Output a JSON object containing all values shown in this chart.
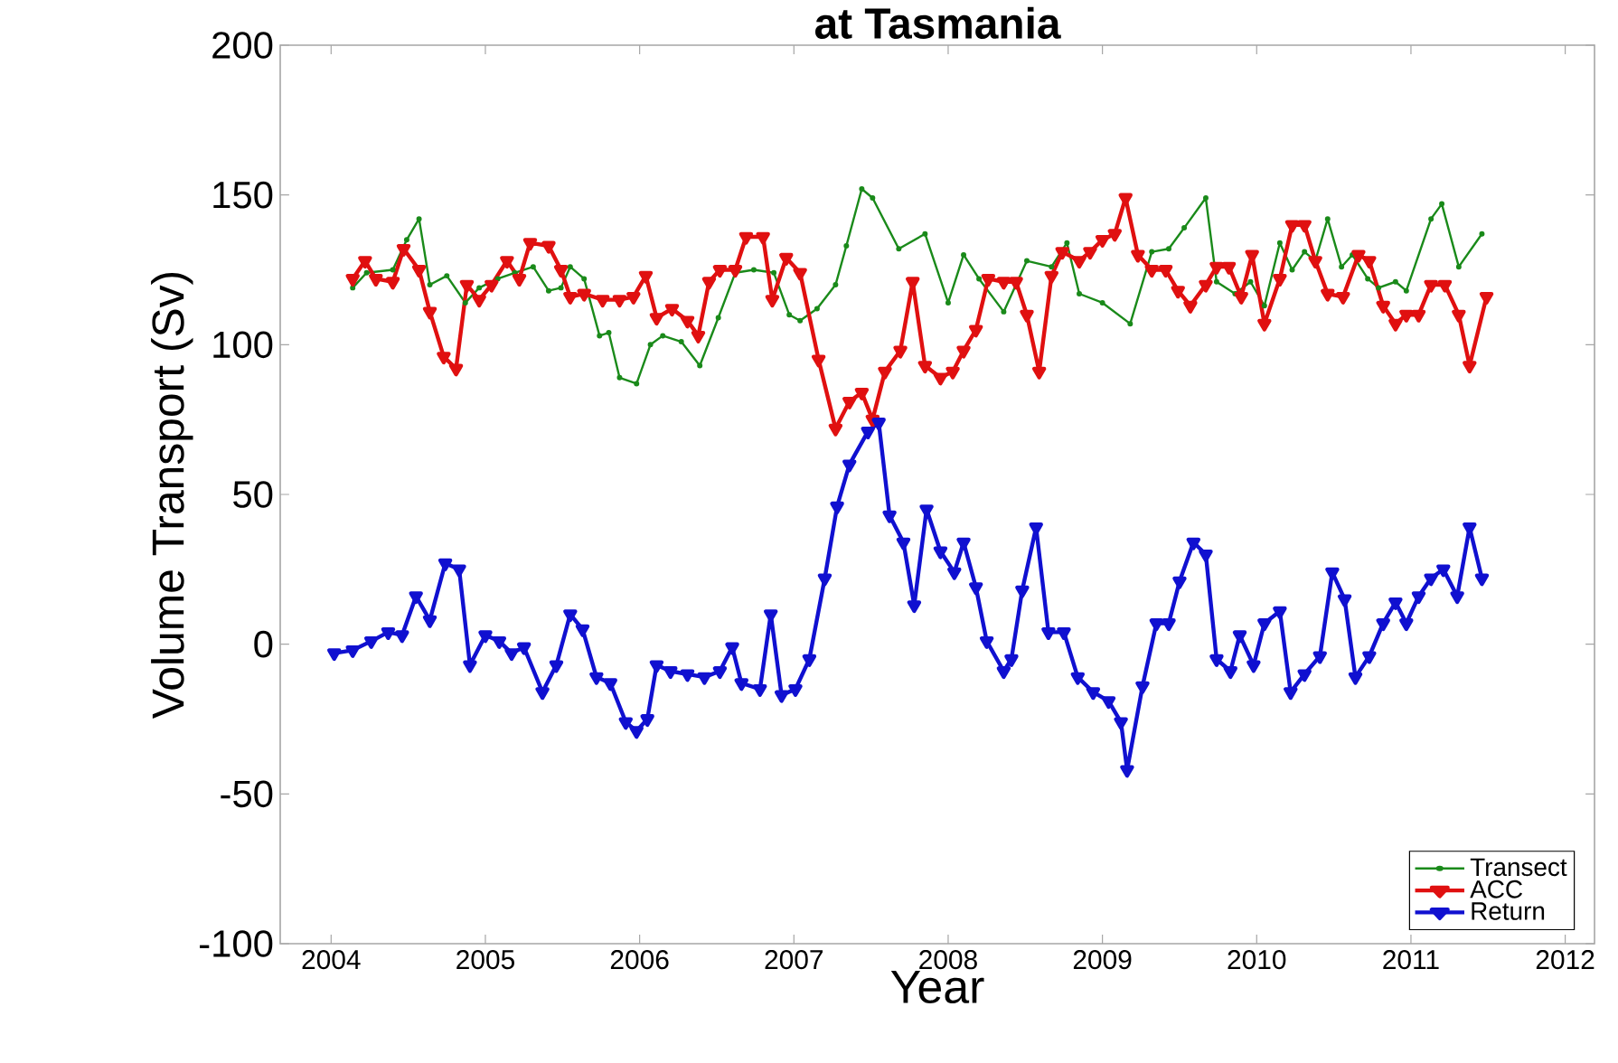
{
  "chart_data": {
    "type": "line",
    "title": "at Tasmania",
    "xlabel": "Year",
    "ylabel": "Volume Transport (Sv)",
    "xlim": [
      2003.67,
      2012.19
    ],
    "ylim": [
      -100,
      200
    ],
    "xticks": [
      2004,
      2005,
      2006,
      2007,
      2008,
      2009,
      2010,
      2011,
      2012
    ],
    "yticks": [
      -100,
      -50,
      0,
      50,
      100,
      150,
      200
    ],
    "grid": false,
    "legend": "bottom right",
    "series": [
      {
        "name": "Transect",
        "color": "#1a8a1a",
        "marker": "circle",
        "x": [
          2004.14,
          2004.23,
          2004.4,
          2004.49,
          2004.57,
          2004.64,
          2004.75,
          2004.87,
          2004.96,
          2005.08,
          2005.19,
          2005.31,
          2005.41,
          2005.49,
          2005.55,
          2005.64,
          2005.74,
          2005.8,
          2005.87,
          2005.98,
          2006.07,
          2006.15,
          2006.27,
          2006.39,
          2006.51,
          2006.62,
          2006.74,
          2006.87,
          2006.97,
          2007.04,
          2007.15,
          2007.27,
          2007.34,
          2007.44,
          2007.51,
          2007.68,
          2007.85,
          2008.0,
          2008.1,
          2008.2,
          2008.36,
          2008.51,
          2008.67,
          2008.77,
          2008.85,
          2009.0,
          2009.18,
          2009.32,
          2009.43,
          2009.53,
          2009.67,
          2009.74,
          2009.86,
          2009.96,
          2010.05,
          2010.15,
          2010.23,
          2010.31,
          2010.38,
          2010.46,
          2010.55,
          2010.62,
          2010.72,
          2010.79,
          2010.9,
          2010.97,
          2011.13,
          2011.2,
          2011.31,
          2011.46
        ],
        "values": [
          119,
          124,
          125,
          135,
          142,
          120,
          123,
          114,
          119,
          122,
          124,
          126,
          118,
          119,
          126,
          122,
          103,
          104,
          89,
          87,
          100,
          103,
          101,
          93,
          109,
          124,
          125,
          124,
          110,
          108,
          112,
          120,
          133,
          152,
          149,
          132,
          137,
          114,
          130,
          122,
          111,
          128,
          126,
          134,
          117,
          114,
          107,
          131,
          132,
          139,
          149,
          121,
          117,
          121,
          113,
          134,
          125,
          131,
          128,
          142,
          126,
          130,
          122,
          119,
          121,
          118,
          142,
          147,
          126,
          137
        ]
      },
      {
        "name": "ACC",
        "color": "#e01010",
        "marker": "triangle",
        "x": [
          2004.14,
          2004.22,
          2004.29,
          2004.4,
          2004.47,
          2004.57,
          2004.64,
          2004.73,
          2004.81,
          2004.88,
          2004.96,
          2005.04,
          2005.14,
          2005.22,
          2005.29,
          2005.41,
          2005.49,
          2005.55,
          2005.64,
          2005.76,
          2005.87,
          2005.96,
          2006.04,
          2006.11,
          2006.21,
          2006.31,
          2006.38,
          2006.45,
          2006.52,
          2006.62,
          2006.69,
          2006.8,
          2006.86,
          2006.95,
          2007.04,
          2007.16,
          2007.27,
          2007.36,
          2007.44,
          2007.51,
          2007.59,
          2007.69,
          2007.77,
          2007.85,
          2007.95,
          2008.03,
          2008.1,
          2008.18,
          2008.26,
          2008.36,
          2008.44,
          2008.51,
          2008.59,
          2008.67,
          2008.74,
          2008.85,
          2008.92,
          2009.0,
          2009.08,
          2009.15,
          2009.23,
          2009.32,
          2009.41,
          2009.49,
          2009.57,
          2009.67,
          2009.74,
          2009.82,
          2009.9,
          2009.97,
          2010.05,
          2010.15,
          2010.23,
          2010.31,
          2010.38,
          2010.46,
          2010.56,
          2010.66,
          2010.73,
          2010.82,
          2010.9,
          2010.97,
          2011.05,
          2011.13,
          2011.22,
          2011.31,
          2011.38,
          2011.49
        ],
        "values": [
          122,
          128,
          122,
          121,
          132,
          125,
          111,
          96,
          92,
          120,
          115,
          120,
          128,
          122,
          134,
          133,
          125,
          116,
          117,
          115,
          115,
          116,
          123,
          109,
          112,
          108,
          103,
          121,
          125,
          125,
          136,
          136,
          115,
          129,
          124,
          95,
          72,
          81,
          84,
          75,
          91,
          98,
          121,
          93,
          89,
          91,
          98,
          105,
          122,
          121,
          121,
          110,
          91,
          123,
          131,
          128,
          131,
          135,
          137,
          149,
          130,
          125,
          125,
          118,
          113,
          120,
          126,
          126,
          116,
          130,
          107,
          122,
          140,
          140,
          128,
          117,
          116,
          130,
          128,
          113,
          107,
          110,
          110,
          120,
          120,
          110,
          93,
          116
        ]
      },
      {
        "name": "Return",
        "color": "#1010d0",
        "marker": "triangle",
        "x": [
          2004.02,
          2004.14,
          2004.26,
          2004.37,
          2004.46,
          2004.55,
          2004.64,
          2004.74,
          2004.83,
          2004.9,
          2005.0,
          2005.09,
          2005.17,
          2005.25,
          2005.37,
          2005.46,
          2005.55,
          2005.63,
          2005.72,
          2005.81,
          2005.91,
          2005.98,
          2006.05,
          2006.11,
          2006.2,
          2006.31,
          2006.42,
          2006.52,
          2006.6,
          2006.66,
          2006.78,
          2006.85,
          2006.92,
          2007.01,
          2007.1,
          2007.2,
          2007.28,
          2007.36,
          2007.48,
          2007.55,
          2007.62,
          2007.71,
          2007.78,
          2007.86,
          2007.95,
          2008.04,
          2008.1,
          2008.18,
          2008.25,
          2008.36,
          2008.41,
          2008.48,
          2008.57,
          2008.65,
          2008.75,
          2008.84,
          2008.94,
          2009.04,
          2009.12,
          2009.16,
          2009.26,
          2009.35,
          2009.43,
          2009.5,
          2009.59,
          2009.67,
          2009.74,
          2009.83,
          2009.89,
          2009.98,
          2010.05,
          2010.15,
          2010.22,
          2010.31,
          2010.41,
          2010.49,
          2010.57,
          2010.64,
          2010.73,
          2010.82,
          2010.9,
          2010.97,
          2011.05,
          2011.13,
          2011.21,
          2011.3,
          2011.38,
          2011.46
        ],
        "values": [
          -3,
          -2,
          1,
          4,
          3,
          16,
          8,
          27,
          25,
          -7,
          3,
          1,
          -3,
          -1,
          -16,
          -7,
          10,
          5,
          -11,
          -13,
          -26,
          -29,
          -25,
          -7,
          -9,
          -10,
          -11,
          -9,
          -1,
          -13,
          -15,
          10,
          -17,
          -15,
          -5,
          22,
          46,
          60,
          71,
          74,
          43,
          34,
          13,
          45,
          31,
          24,
          34,
          19,
          1,
          -9,
          -5,
          18,
          39,
          4,
          4,
          -11,
          -16,
          -19,
          -26,
          -42,
          -14,
          7,
          7,
          21,
          34,
          30,
          -5,
          -9,
          3,
          -7,
          7,
          11,
          -16,
          -10,
          -4,
          24,
          15,
          -11,
          -4,
          7,
          14,
          7,
          16,
          22,
          25,
          16,
          39,
          22
        ]
      }
    ]
  }
}
